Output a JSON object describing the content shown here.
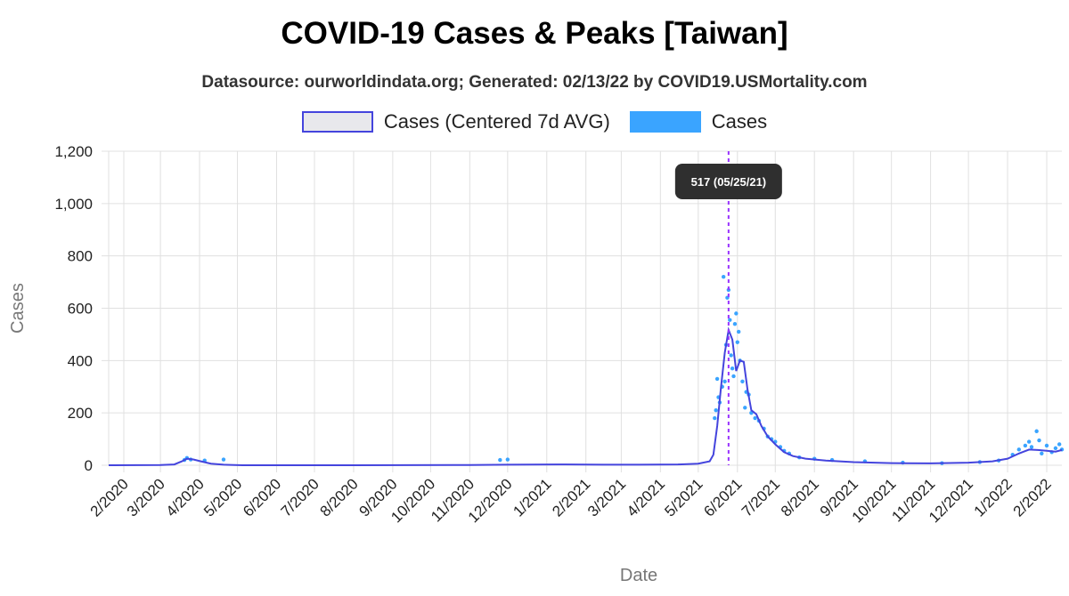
{
  "title": "COVID-19 Cases & Peaks [Taiwan]",
  "subtitle": "Datasource: ourworldindata.org; Generated: 02/13/22 by COVID19.USMortality.com",
  "legend": [
    {
      "label": "Cases (Centered 7d AVG)",
      "fill": "#e8e8ec",
      "stroke": "#4444dd"
    },
    {
      "label": "Cases",
      "fill": "#3aa4ff",
      "stroke": "#3aa4ff"
    }
  ],
  "colors": {
    "avg_line": "#4444dd",
    "points": "#3aa4ff",
    "peak_line": "#9933ff",
    "grid": "#e0e0e0",
    "tooltip": "#2f2f2f"
  },
  "tooltip": {
    "text": "517 (05/25/21)"
  },
  "chart_data": {
    "type": "line",
    "xlabel": "Date",
    "ylabel": "Cases",
    "x_range": [
      "2020-01-20",
      "2022-02-13"
    ],
    "ylim": [
      0,
      1200
    ],
    "y_ticks": [
      "0",
      "200",
      "400",
      "600",
      "800",
      "1,000",
      "1,200"
    ],
    "x_ticks": [
      "2/2020",
      "3/2020",
      "4/2020",
      "5/2020",
      "6/2020",
      "7/2020",
      "8/2020",
      "9/2020",
      "10/2020",
      "11/2020",
      "12/2020",
      "1/2021",
      "2/2021",
      "3/2021",
      "4/2021",
      "5/2021",
      "6/2021",
      "7/2021",
      "8/2021",
      "9/2021",
      "10/2021",
      "11/2021",
      "12/2021",
      "1/2022",
      "2/2022"
    ],
    "grid": true,
    "legend_position": "top",
    "peak": {
      "date": "2021-05-25",
      "value": 517
    },
    "series": [
      {
        "name": "Cases (Centered 7d AVG)",
        "points": [
          [
            "2020-01-20",
            0
          ],
          [
            "2020-03-01",
            1
          ],
          [
            "2020-03-12",
            3
          ],
          [
            "2020-03-18",
            15
          ],
          [
            "2020-03-22",
            25
          ],
          [
            "2020-03-27",
            22
          ],
          [
            "2020-04-02",
            15
          ],
          [
            "2020-04-10",
            6
          ],
          [
            "2020-04-20",
            2
          ],
          [
            "2020-05-05",
            0
          ],
          [
            "2020-08-01",
            0
          ],
          [
            "2020-11-01",
            1
          ],
          [
            "2020-12-01",
            2
          ],
          [
            "2021-01-10",
            3
          ],
          [
            "2021-02-15",
            2
          ],
          [
            "2021-03-15",
            2
          ],
          [
            "2021-04-15",
            3
          ],
          [
            "2021-05-01",
            6
          ],
          [
            "2021-05-10",
            15
          ],
          [
            "2021-05-13",
            40
          ],
          [
            "2021-05-16",
            150
          ],
          [
            "2021-05-19",
            300
          ],
          [
            "2021-05-22",
            430
          ],
          [
            "2021-05-25",
            517
          ],
          [
            "2021-05-28",
            480
          ],
          [
            "2021-05-31",
            360
          ],
          [
            "2021-06-03",
            400
          ],
          [
            "2021-06-06",
            395
          ],
          [
            "2021-06-09",
            290
          ],
          [
            "2021-06-12",
            210
          ],
          [
            "2021-06-16",
            195
          ],
          [
            "2021-06-20",
            150
          ],
          [
            "2021-06-25",
            110
          ],
          [
            "2021-07-01",
            80
          ],
          [
            "2021-07-08",
            50
          ],
          [
            "2021-07-15",
            35
          ],
          [
            "2021-07-25",
            25
          ],
          [
            "2021-08-10",
            18
          ],
          [
            "2021-09-01",
            12
          ],
          [
            "2021-10-01",
            8
          ],
          [
            "2021-11-01",
            7
          ],
          [
            "2021-12-01",
            10
          ],
          [
            "2021-12-20",
            15
          ],
          [
            "2022-01-01",
            25
          ],
          [
            "2022-01-10",
            45
          ],
          [
            "2022-01-18",
            60
          ],
          [
            "2022-01-25",
            58
          ],
          [
            "2022-02-01",
            55
          ],
          [
            "2022-02-08",
            52
          ],
          [
            "2022-02-13",
            58
          ]
        ]
      },
      {
        "name": "Cases",
        "points": [
          [
            "2020-03-20",
            20
          ],
          [
            "2020-03-22",
            28
          ],
          [
            "2020-03-25",
            22
          ],
          [
            "2020-04-05",
            18
          ],
          [
            "2020-04-20",
            22
          ],
          [
            "2020-11-25",
            20
          ],
          [
            "2020-12-01",
            22
          ],
          [
            "2021-05-14",
            180
          ],
          [
            "2021-05-15",
            210
          ],
          [
            "2021-05-16",
            330
          ],
          [
            "2021-05-17",
            260
          ],
          [
            "2021-05-18",
            240
          ],
          [
            "2021-05-20",
            300
          ],
          [
            "2021-05-21",
            720
          ],
          [
            "2021-05-22",
            320
          ],
          [
            "2021-05-23",
            460
          ],
          [
            "2021-05-24",
            640
          ],
          [
            "2021-05-25",
            670
          ],
          [
            "2021-05-26",
            555
          ],
          [
            "2021-05-27",
            420
          ],
          [
            "2021-05-28",
            370
          ],
          [
            "2021-05-29",
            340
          ],
          [
            "2021-05-30",
            540
          ],
          [
            "2021-05-31",
            580
          ],
          [
            "2021-06-01",
            470
          ],
          [
            "2021-06-02",
            510
          ],
          [
            "2021-06-03",
            400
          ],
          [
            "2021-06-05",
            320
          ],
          [
            "2021-06-07",
            220
          ],
          [
            "2021-06-08",
            280
          ],
          [
            "2021-06-10",
            270
          ],
          [
            "2021-06-12",
            200
          ],
          [
            "2021-06-15",
            180
          ],
          [
            "2021-06-18",
            170
          ],
          [
            "2021-06-22",
            140
          ],
          [
            "2021-06-25",
            110
          ],
          [
            "2021-06-28",
            100
          ],
          [
            "2021-07-01",
            90
          ],
          [
            "2021-07-05",
            70
          ],
          [
            "2021-07-08",
            55
          ],
          [
            "2021-07-12",
            45
          ],
          [
            "2021-07-20",
            30
          ],
          [
            "2021-08-01",
            25
          ],
          [
            "2021-08-15",
            20
          ],
          [
            "2021-09-10",
            15
          ],
          [
            "2021-10-10",
            10
          ],
          [
            "2021-11-10",
            8
          ],
          [
            "2021-12-10",
            12
          ],
          [
            "2021-12-25",
            18
          ],
          [
            "2022-01-05",
            40
          ],
          [
            "2022-01-10",
            60
          ],
          [
            "2022-01-15",
            75
          ],
          [
            "2022-01-18",
            90
          ],
          [
            "2022-01-20",
            70
          ],
          [
            "2022-01-24",
            130
          ],
          [
            "2022-01-26",
            95
          ],
          [
            "2022-01-28",
            45
          ],
          [
            "2022-02-01",
            75
          ],
          [
            "2022-02-05",
            50
          ],
          [
            "2022-02-08",
            65
          ],
          [
            "2022-02-11",
            80
          ],
          [
            "2022-02-13",
            60
          ]
        ]
      }
    ]
  }
}
